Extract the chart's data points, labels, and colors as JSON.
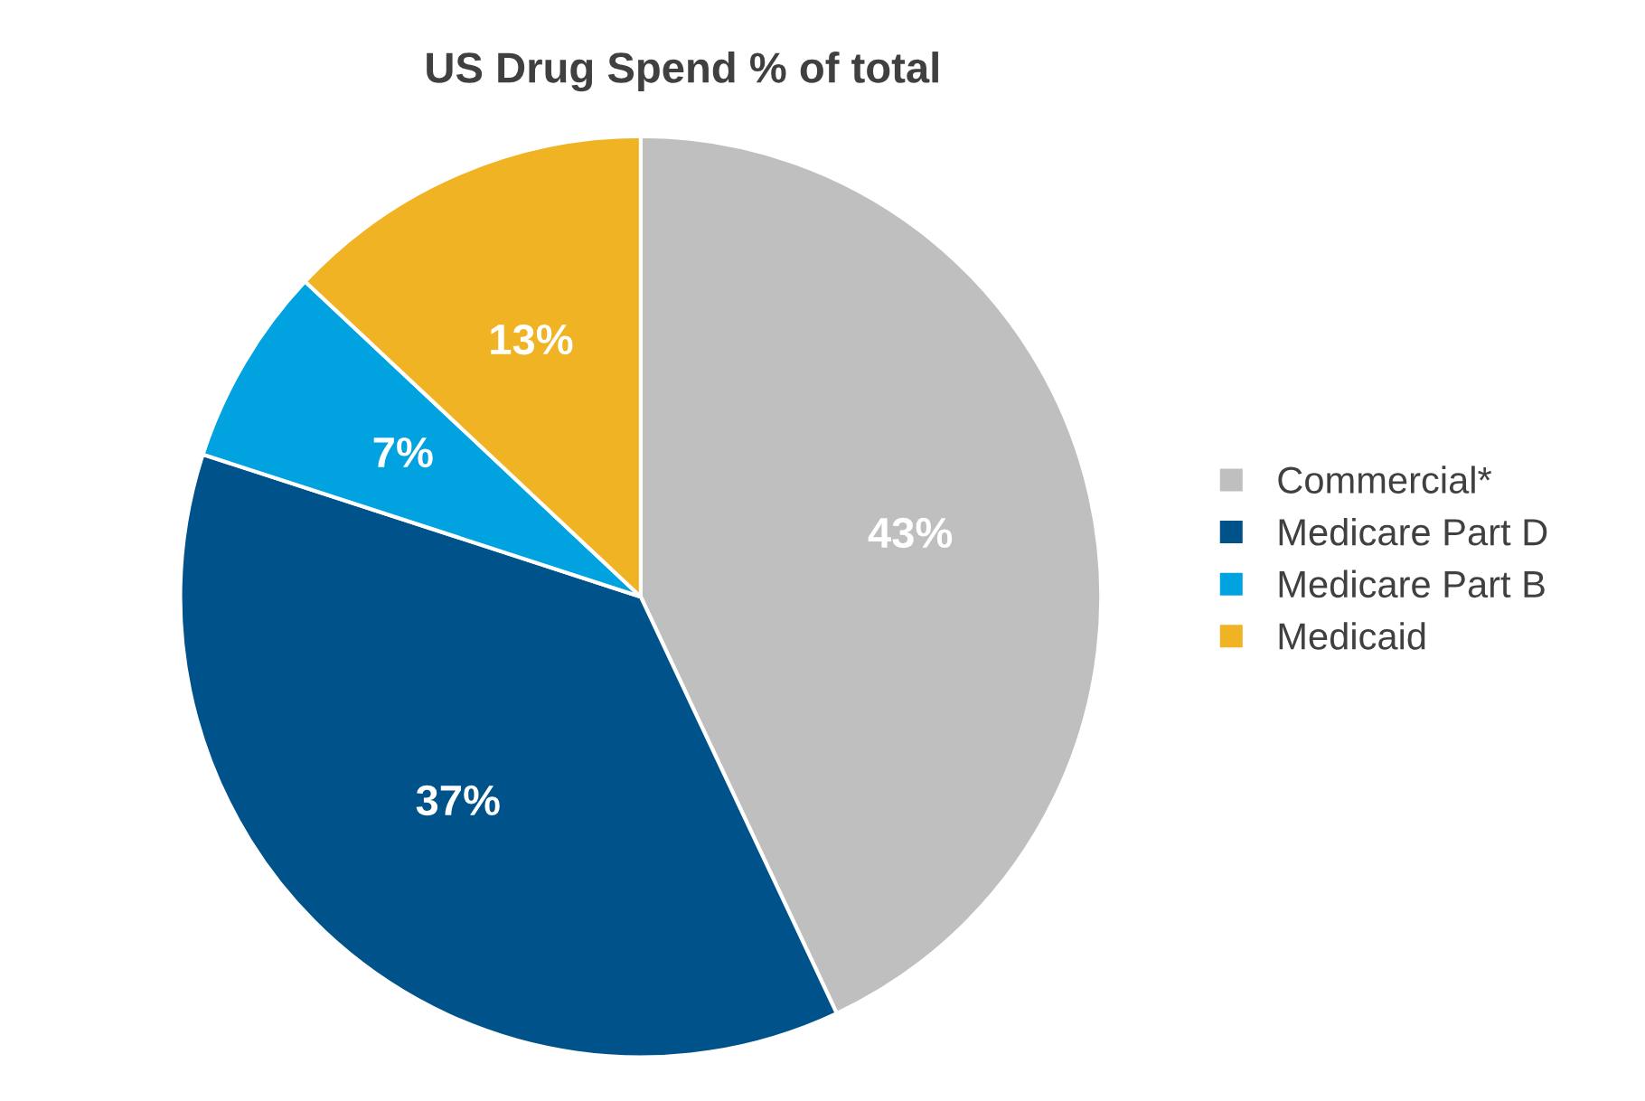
{
  "chart_data": {
    "type": "pie",
    "title": "US Drug Spend % of total",
    "categories": [
      "Commercial*",
      "Medicare Part D",
      "Medicare Part B",
      "Medicaid"
    ],
    "values": [
      43,
      37,
      7,
      13
    ],
    "colors": [
      "#bfbfbf",
      "#00538a",
      "#00a3e0",
      "#f0b323"
    ],
    "value_labels": [
      "43%",
      "37%",
      "7%",
      "13%"
    ],
    "legend": "right"
  }
}
